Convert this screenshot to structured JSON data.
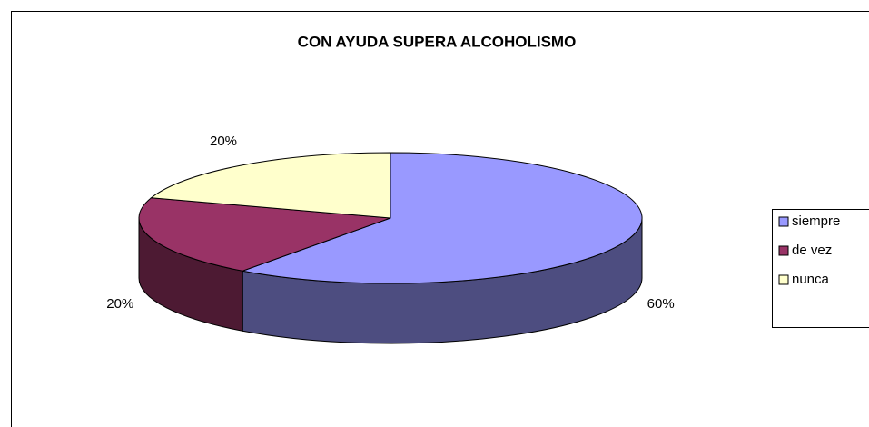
{
  "chart_data": {
    "type": "pie",
    "title": "CON AYUDA SUPERA ALCOHOLISMO",
    "categories": [
      "siempre",
      "de vez",
      "nunca"
    ],
    "values": [
      60,
      20,
      20
    ],
    "value_labels": [
      "60%",
      "20%",
      "20%"
    ],
    "colors": [
      "#9999ff",
      "#993366",
      "#ffffcc"
    ],
    "legend": "right"
  }
}
